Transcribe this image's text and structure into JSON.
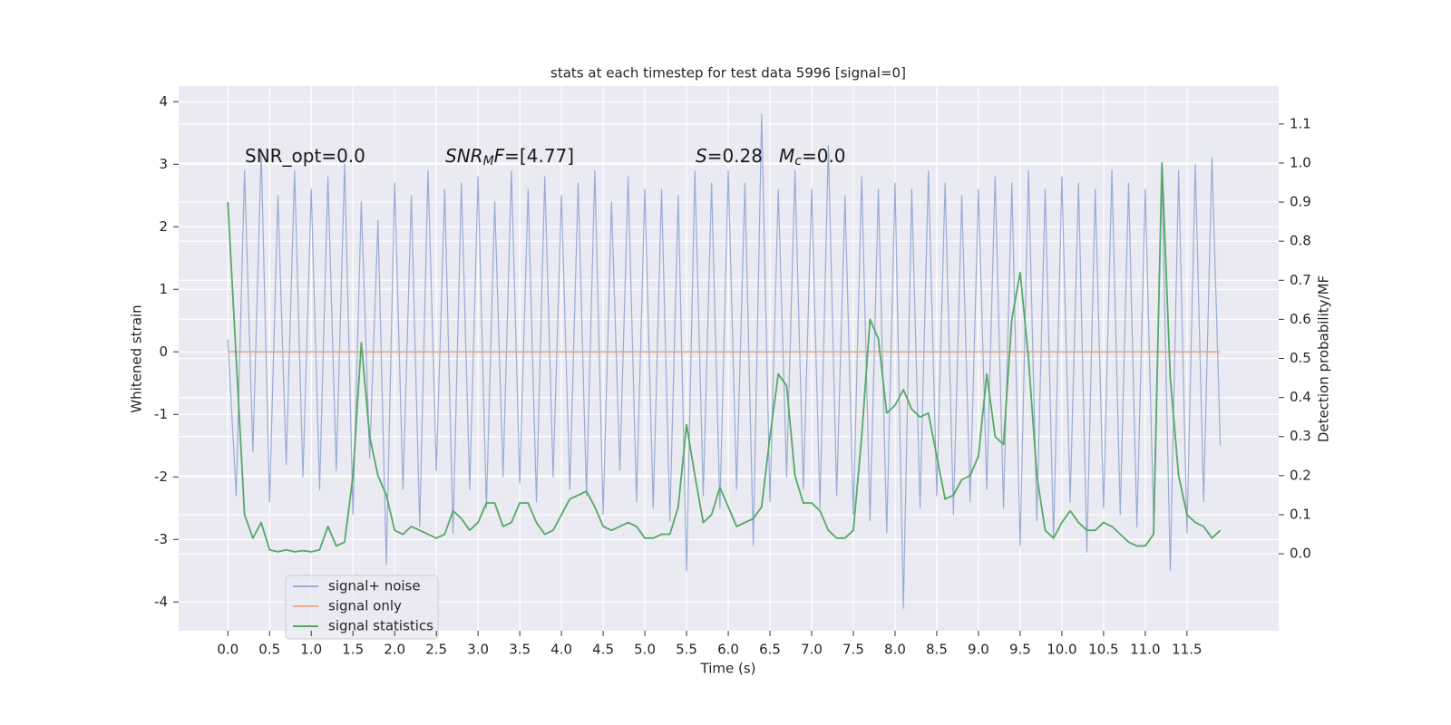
{
  "chart_data": {
    "type": "line",
    "title": "stats at each timestep for test data 5996 [signal=0]",
    "xlabel": "Time (s)",
    "ylabel": "Whitened strain",
    "y2label": "Detection probability/MF",
    "xlim": [
      -0.59,
      12.6
    ],
    "ylim": [
      -4.46,
      4.25
    ],
    "y2lim": [
      -0.197,
      1.197
    ],
    "xticks": [
      {
        "value": 0,
        "label": "0.0"
      },
      {
        "value": 0.5,
        "label": "0.5"
      },
      {
        "value": 1,
        "label": "1.0"
      },
      {
        "value": 1.5,
        "label": "1.5"
      },
      {
        "value": 2,
        "label": "2.0"
      },
      {
        "value": 2.5,
        "label": "2.5"
      },
      {
        "value": 3,
        "label": "3.0"
      },
      {
        "value": 3.5,
        "label": "3.5"
      },
      {
        "value": 4,
        "label": "4.0"
      },
      {
        "value": 4.5,
        "label": "4.5"
      },
      {
        "value": 5,
        "label": "5.0"
      },
      {
        "value": 5.5,
        "label": "5.5"
      },
      {
        "value": 6,
        "label": "6.0"
      },
      {
        "value": 6.5,
        "label": "6.5"
      },
      {
        "value": 7,
        "label": "7.0"
      },
      {
        "value": 7.5,
        "label": "7.5"
      },
      {
        "value": 8,
        "label": "8.0"
      },
      {
        "value": 8.5,
        "label": "8.5"
      },
      {
        "value": 9,
        "label": "9.0"
      },
      {
        "value": 9.5,
        "label": "9.5"
      },
      {
        "value": 10,
        "label": "10.0"
      },
      {
        "value": 10.5,
        "label": "10.5"
      },
      {
        "value": 11,
        "label": "11.0"
      },
      {
        "value": 11.5,
        "label": "11.5"
      }
    ],
    "yticks": [
      -4,
      -3,
      -2,
      -1,
      0,
      1,
      2,
      3,
      4
    ],
    "y2ticks": [
      {
        "value": 0,
        "label": "0.0"
      },
      {
        "value": 0.1,
        "label": "0.1"
      },
      {
        "value": 0.2,
        "label": "0.2"
      },
      {
        "value": 0.3,
        "label": "0.3"
      },
      {
        "value": 0.4,
        "label": "0.4"
      },
      {
        "value": 0.5,
        "label": "0.5"
      },
      {
        "value": 0.6,
        "label": "0.6"
      },
      {
        "value": 0.7,
        "label": "0.7"
      },
      {
        "value": 0.8,
        "label": "0.8"
      },
      {
        "value": 0.9,
        "label": "0.9"
      },
      {
        "value": 1,
        "label": "1.0"
      },
      {
        "value": 1.1,
        "label": "1.1"
      }
    ],
    "grid": true,
    "legend": "lower left",
    "annotations": [
      [
        {
          "text": "SNR_opt=0.0"
        }
      ],
      [
        {
          "text": "SNR",
          "italic": true
        },
        {
          "text": "M",
          "italic": true,
          "sub": true
        },
        {
          "text": "F",
          "italic": true
        },
        {
          "text": "=[4.77]"
        }
      ],
      [
        {
          "text": "S",
          "italic": true
        },
        {
          "text": "=0.28"
        }
      ],
      [
        {
          "text": "M",
          "italic": true
        },
        {
          "text": "c",
          "italic": true,
          "sub": true
        },
        {
          "text": "=0.0"
        }
      ]
    ],
    "x": [
      0.0,
      0.1,
      0.2,
      0.3,
      0.4,
      0.5,
      0.6,
      0.7,
      0.8,
      0.9,
      1.0,
      1.1,
      1.2,
      1.3,
      1.4,
      1.5,
      1.6,
      1.7,
      1.8,
      1.9,
      2.0,
      2.1,
      2.2,
      2.3,
      2.4,
      2.5,
      2.6,
      2.7,
      2.8,
      2.9,
      3.0,
      3.1,
      3.2,
      3.3,
      3.4,
      3.5,
      3.6,
      3.7,
      3.8,
      3.9,
      4.0,
      4.1,
      4.2,
      4.3,
      4.4,
      4.5,
      4.6,
      4.7,
      4.8,
      4.9,
      5.0,
      5.1,
      5.2,
      5.3,
      5.4,
      5.5,
      5.6,
      5.7,
      5.8,
      5.9,
      6.0,
      6.1,
      6.2,
      6.3,
      6.4,
      6.5,
      6.6,
      6.7,
      6.8,
      6.9,
      7.0,
      7.1,
      7.2,
      7.3,
      7.4,
      7.5,
      7.6,
      7.7,
      7.8,
      7.9,
      8.0,
      8.1,
      8.2,
      8.3,
      8.4,
      8.5,
      8.6,
      8.7,
      8.8,
      8.9,
      9.0,
      9.1,
      9.2,
      9.3,
      9.4,
      9.5,
      9.6,
      9.7,
      9.8,
      9.9,
      10.0,
      10.1,
      10.2,
      10.3,
      10.4,
      10.5,
      10.6,
      10.7,
      10.8,
      10.9,
      11.0,
      11.1,
      11.2,
      11.3,
      11.4,
      11.5,
      11.6,
      11.7,
      11.8,
      11.9
    ],
    "series": [
      {
        "name": "signal+ noise",
        "color": "#9aabd3",
        "values": [
          0.2,
          -2.3,
          2.9,
          -1.6,
          3.2,
          -2.4,
          2.5,
          -1.8,
          2.9,
          -2.0,
          2.6,
          -2.2,
          2.8,
          -1.9,
          3.0,
          -2.6,
          2.4,
          -1.7,
          2.1,
          -3.4,
          2.7,
          -2.2,
          2.5,
          -2.8,
          2.9,
          -1.9,
          2.6,
          -2.9,
          2.7,
          -2.2,
          2.8,
          -2.5,
          2.4,
          -2.0,
          2.9,
          -2.1,
          2.6,
          -2.4,
          2.8,
          -2.0,
          2.5,
          -2.2,
          2.7,
          -2.3,
          2.9,
          -2.6,
          2.4,
          -1.9,
          2.8,
          -2.4,
          2.6,
          -2.5,
          2.6,
          -2.7,
          2.5,
          -3.5,
          2.9,
          -2.3,
          2.7,
          -2.5,
          2.9,
          -2.2,
          2.7,
          -3.1,
          3.8,
          -2.4,
          2.6,
          -2.0,
          2.9,
          -2.2,
          2.6,
          -2.5,
          3.3,
          -2.3,
          2.5,
          -2.6,
          2.8,
          -2.7,
          2.6,
          -2.9,
          2.7,
          -4.1,
          2.6,
          -2.5,
          2.9,
          -2.3,
          2.7,
          -2.6,
          2.5,
          -2.4,
          2.6,
          -2.2,
          2.8,
          -2.5,
          2.7,
          -3.1,
          2.9,
          -2.7,
          2.6,
          -3.0,
          2.8,
          -2.4,
          2.7,
          -3.2,
          2.6,
          -2.5,
          2.9,
          -2.6,
          2.7,
          -2.8,
          2.6,
          -2.7,
          2.8,
          -3.5,
          2.9,
          -2.9,
          3.0,
          -2.4,
          3.1,
          -1.5
        ]
      },
      {
        "name": "signal only",
        "color": "#e8ad94",
        "values": [
          0,
          0,
          0,
          0,
          0,
          0,
          0,
          0,
          0,
          0,
          0,
          0,
          0,
          0,
          0,
          0,
          0,
          0,
          0,
          0,
          0,
          0,
          0,
          0,
          0,
          0,
          0,
          0,
          0,
          0,
          0,
          0,
          0,
          0,
          0,
          0,
          0,
          0,
          0,
          0,
          0,
          0,
          0,
          0,
          0,
          0,
          0,
          0,
          0,
          0,
          0,
          0,
          0,
          0,
          0,
          0,
          0,
          0,
          0,
          0,
          0,
          0,
          0,
          0,
          0,
          0,
          0,
          0,
          0,
          0,
          0,
          0,
          0,
          0,
          0,
          0,
          0,
          0,
          0,
          0,
          0,
          0,
          0,
          0,
          0,
          0,
          0,
          0,
          0,
          0,
          0,
          0,
          0,
          0,
          0,
          0,
          0,
          0,
          0,
          0,
          0,
          0,
          0,
          0,
          0,
          0,
          0,
          0,
          0,
          0,
          0,
          0,
          0,
          0,
          0,
          0,
          0,
          0,
          0,
          0
        ]
      },
      {
        "name": "signal statistics",
        "color": "#55a868",
        "axis": "y2",
        "values": [
          0.9,
          0.5,
          0.1,
          0.04,
          0.08,
          0.01,
          0.005,
          0.01,
          0.005,
          0.008,
          0.005,
          0.01,
          0.07,
          0.02,
          0.03,
          0.2,
          0.54,
          0.3,
          0.2,
          0.15,
          0.06,
          0.05,
          0.07,
          0.06,
          0.05,
          0.04,
          0.05,
          0.11,
          0.09,
          0.06,
          0.08,
          0.13,
          0.13,
          0.07,
          0.08,
          0.13,
          0.13,
          0.08,
          0.05,
          0.06,
          0.1,
          0.14,
          0.15,
          0.16,
          0.12,
          0.07,
          0.06,
          0.07,
          0.08,
          0.07,
          0.04,
          0.04,
          0.05,
          0.05,
          0.12,
          0.33,
          0.2,
          0.08,
          0.1,
          0.17,
          0.12,
          0.07,
          0.08,
          0.09,
          0.12,
          0.3,
          0.46,
          0.43,
          0.2,
          0.13,
          0.13,
          0.11,
          0.06,
          0.04,
          0.04,
          0.06,
          0.3,
          0.6,
          0.55,
          0.36,
          0.38,
          0.42,
          0.37,
          0.35,
          0.36,
          0.25,
          0.14,
          0.15,
          0.19,
          0.2,
          0.25,
          0.46,
          0.3,
          0.28,
          0.6,
          0.72,
          0.5,
          0.2,
          0.06,
          0.04,
          0.08,
          0.11,
          0.08,
          0.06,
          0.06,
          0.08,
          0.07,
          0.05,
          0.03,
          0.02,
          0.02,
          0.05,
          1.0,
          0.45,
          0.2,
          0.1,
          0.08,
          0.07,
          0.04,
          0.06
        ]
      }
    ]
  }
}
